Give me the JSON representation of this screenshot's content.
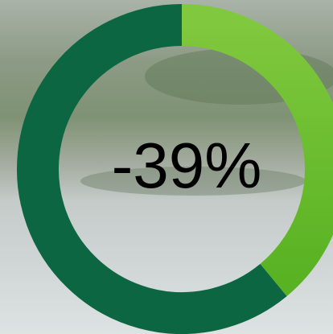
{
  "chart_data": {
    "type": "donut",
    "value": -39,
    "value_label": "-39%",
    "ylim": [
      0,
      -100
    ],
    "color": "#72c034",
    "rest_color": "#0d6642"
  }
}
